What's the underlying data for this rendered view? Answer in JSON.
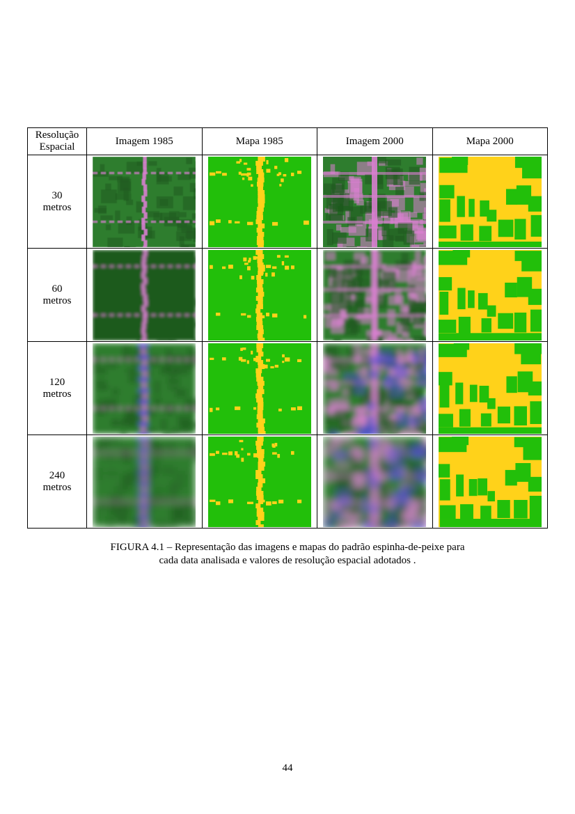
{
  "table": {
    "headers": [
      "Resolução\nEspacial",
      "Imagem 1985",
      "Mapa 1985",
      "Imagem 2000",
      "Mapa 2000"
    ],
    "rows": [
      {
        "resolution": "30\nmetros"
      },
      {
        "resolution": "60\nmetros"
      },
      {
        "resolution": "120\nmetros"
      },
      {
        "resolution": "240\nmetros"
      }
    ]
  },
  "colors": {
    "forest_map": "#22bf0a",
    "deforested_map": "#ffd21a",
    "forest_image_dark": "#1f5a1f",
    "forest_image": "#2f7d2f",
    "clearing_image": "#d87fd0",
    "blue_tint": "#4a4ad8"
  },
  "caption": {
    "line1": "FIGURA 4.1 – Representação das imagens e mapas do padrão espinha-de-peixe para",
    "line2": "cada data analisada e valores de resolução espacial adotados ."
  },
  "page_number": "44"
}
